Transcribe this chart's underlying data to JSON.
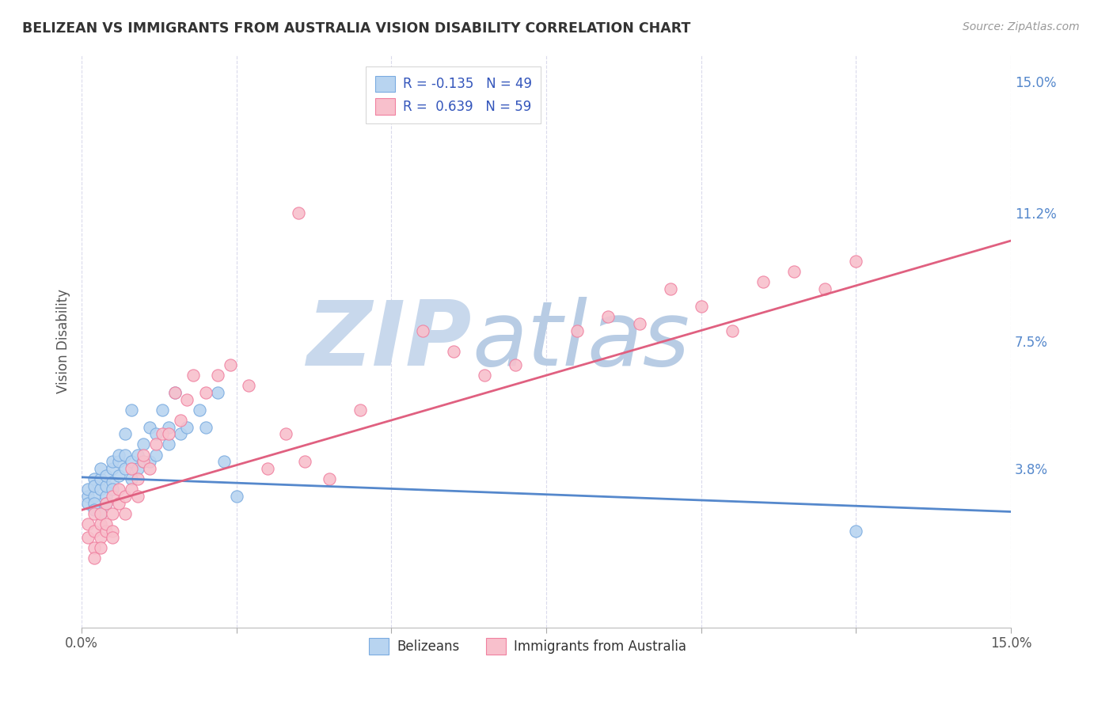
{
  "title": "BELIZEAN VS IMMIGRANTS FROM AUSTRALIA VISION DISABILITY CORRELATION CHART",
  "source": "Source: ZipAtlas.com",
  "ylabel": "Vision Disability",
  "xlim": [
    0.0,
    0.15
  ],
  "ylim": [
    -0.008,
    0.158
  ],
  "legend_label1": "R = -0.135   N = 49",
  "legend_label2": "R =  0.639   N = 59",
  "legend_group1": "Belizeans",
  "legend_group2": "Immigrants from Australia",
  "color_blue": "#7AABE0",
  "color_blue_face": "#B8D4F0",
  "color_pink": "#F080A0",
  "color_pink_face": "#F8C0CC",
  "color_trend_blue": "#5588CC",
  "color_trend_pink": "#E06080",
  "watermark_zip": "ZIP",
  "watermark_atlas": "atlas",
  "watermark_color_zip": "#C8D8EC",
  "watermark_color_atlas": "#B8CCE4",
  "background": "#FFFFFF",
  "grid_color": "#DADAEC",
  "ytick_vals": [
    0.038,
    0.075,
    0.112,
    0.15
  ],
  "ytick_labels": [
    "3.8%",
    "7.5%",
    "11.2%",
    "15.0%"
  ],
  "trend_blue_y0": 0.0355,
  "trend_blue_y1": 0.0255,
  "trend_pink_y0": 0.026,
  "trend_pink_y1": 0.104,
  "belizean_x": [
    0.001,
    0.001,
    0.001,
    0.002,
    0.002,
    0.002,
    0.002,
    0.002,
    0.003,
    0.003,
    0.003,
    0.003,
    0.004,
    0.004,
    0.004,
    0.004,
    0.005,
    0.005,
    0.005,
    0.005,
    0.006,
    0.006,
    0.006,
    0.007,
    0.007,
    0.007,
    0.008,
    0.008,
    0.008,
    0.009,
    0.009,
    0.01,
    0.01,
    0.011,
    0.011,
    0.012,
    0.012,
    0.013,
    0.014,
    0.014,
    0.015,
    0.016,
    0.017,
    0.019,
    0.02,
    0.022,
    0.023,
    0.025,
    0.125
  ],
  "belizean_y": [
    0.03,
    0.028,
    0.032,
    0.035,
    0.03,
    0.033,
    0.028,
    0.026,
    0.032,
    0.035,
    0.038,
    0.025,
    0.03,
    0.033,
    0.036,
    0.028,
    0.034,
    0.038,
    0.032,
    0.04,
    0.036,
    0.04,
    0.042,
    0.038,
    0.042,
    0.048,
    0.035,
    0.04,
    0.055,
    0.038,
    0.042,
    0.04,
    0.045,
    0.05,
    0.04,
    0.042,
    0.048,
    0.055,
    0.05,
    0.045,
    0.06,
    0.048,
    0.05,
    0.055,
    0.05,
    0.06,
    0.04,
    0.03,
    0.02
  ],
  "australia_x": [
    0.001,
    0.001,
    0.002,
    0.002,
    0.002,
    0.002,
    0.003,
    0.003,
    0.003,
    0.003,
    0.004,
    0.004,
    0.004,
    0.005,
    0.005,
    0.005,
    0.005,
    0.006,
    0.006,
    0.007,
    0.007,
    0.008,
    0.008,
    0.009,
    0.009,
    0.01,
    0.01,
    0.011,
    0.012,
    0.013,
    0.014,
    0.015,
    0.016,
    0.017,
    0.018,
    0.02,
    0.022,
    0.024,
    0.027,
    0.03,
    0.033,
    0.036,
    0.04,
    0.045,
    0.055,
    0.06,
    0.065,
    0.07,
    0.08,
    0.085,
    0.09,
    0.095,
    0.1,
    0.105,
    0.11,
    0.115,
    0.12,
    0.125,
    0.035
  ],
  "australia_y": [
    0.018,
    0.022,
    0.015,
    0.02,
    0.025,
    0.012,
    0.018,
    0.022,
    0.025,
    0.015,
    0.02,
    0.028,
    0.022,
    0.025,
    0.03,
    0.02,
    0.018,
    0.028,
    0.032,
    0.03,
    0.025,
    0.032,
    0.038,
    0.03,
    0.035,
    0.04,
    0.042,
    0.038,
    0.045,
    0.048,
    0.048,
    0.06,
    0.052,
    0.058,
    0.065,
    0.06,
    0.065,
    0.068,
    0.062,
    0.038,
    0.048,
    0.04,
    0.035,
    0.055,
    0.078,
    0.072,
    0.065,
    0.068,
    0.078,
    0.082,
    0.08,
    0.09,
    0.085,
    0.078,
    0.092,
    0.095,
    0.09,
    0.098,
    0.112
  ]
}
